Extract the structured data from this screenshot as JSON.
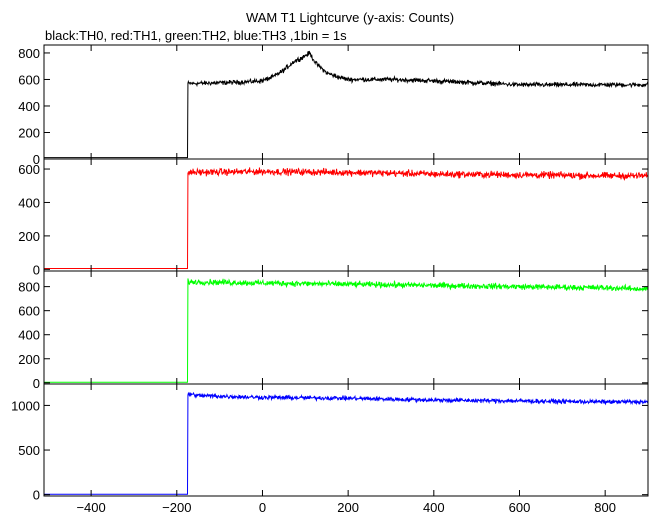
{
  "chart_data": {
    "type": "line",
    "title": "WAM T1 Lightcurve (y-axis: Counts)",
    "subtitle": "black:TH0, red:TH1, green:TH2, blue:TH3 ,1bin = 1s",
    "xlabel": "",
    "ylabel": "",
    "xlim": [
      -510,
      900
    ],
    "x_ticks": [
      -400,
      -200,
      0,
      200,
      400,
      600,
      800
    ],
    "x_tick_labels": [
      "−400",
      "−200",
      "0",
      "200",
      "400",
      "600",
      "800"
    ],
    "grid": false,
    "legend": "none",
    "panels": [
      {
        "name": "TH0",
        "color": "#000000",
        "ylim": [
          0,
          860
        ],
        "y_ticks": [
          0,
          200,
          400,
          600,
          800
        ],
        "x": [
          -510,
          -175,
          -174,
          -160,
          -100,
          -50,
          0,
          25,
          50,
          75,
          90,
          110,
          125,
          150,
          175,
          200,
          300,
          400,
          500,
          600,
          700,
          800,
          900
        ],
        "values": [
          10,
          10,
          570,
          570,
          575,
          580,
          590,
          620,
          670,
          740,
          760,
          800,
          720,
          650,
          620,
          600,
          600,
          590,
          575,
          560,
          560,
          560,
          560
        ],
        "noise": 25
      },
      {
        "name": "TH1",
        "color": "#ff0000",
        "ylim": [
          -10,
          660
        ],
        "y_ticks": [
          0,
          200,
          400,
          600
        ],
        "x": [
          -510,
          -175,
          -174,
          0,
          200,
          400,
          600,
          800,
          900
        ],
        "values": [
          5,
          5,
          580,
          585,
          580,
          570,
          565,
          560,
          560
        ],
        "noise": 30
      },
      {
        "name": "TH2",
        "color": "#00ff00",
        "ylim": [
          -10,
          930
        ],
        "y_ticks": [
          0,
          200,
          400,
          600,
          800
        ],
        "x": [
          -510,
          -175,
          -174,
          0,
          200,
          400,
          600,
          800,
          900
        ],
        "values": [
          5,
          5,
          840,
          830,
          820,
          810,
          800,
          790,
          780
        ],
        "noise": 35
      },
      {
        "name": "TH3",
        "color": "#0000ff",
        "ylim": [
          -15,
          1240
        ],
        "y_ticks": [
          0,
          500,
          1000
        ],
        "x": [
          -510,
          -175,
          -174,
          -150,
          0,
          200,
          400,
          600,
          800,
          900
        ],
        "values": [
          5,
          5,
          1130,
          1110,
          1090,
          1080,
          1060,
          1050,
          1040,
          1040
        ],
        "noise": 35
      }
    ]
  }
}
